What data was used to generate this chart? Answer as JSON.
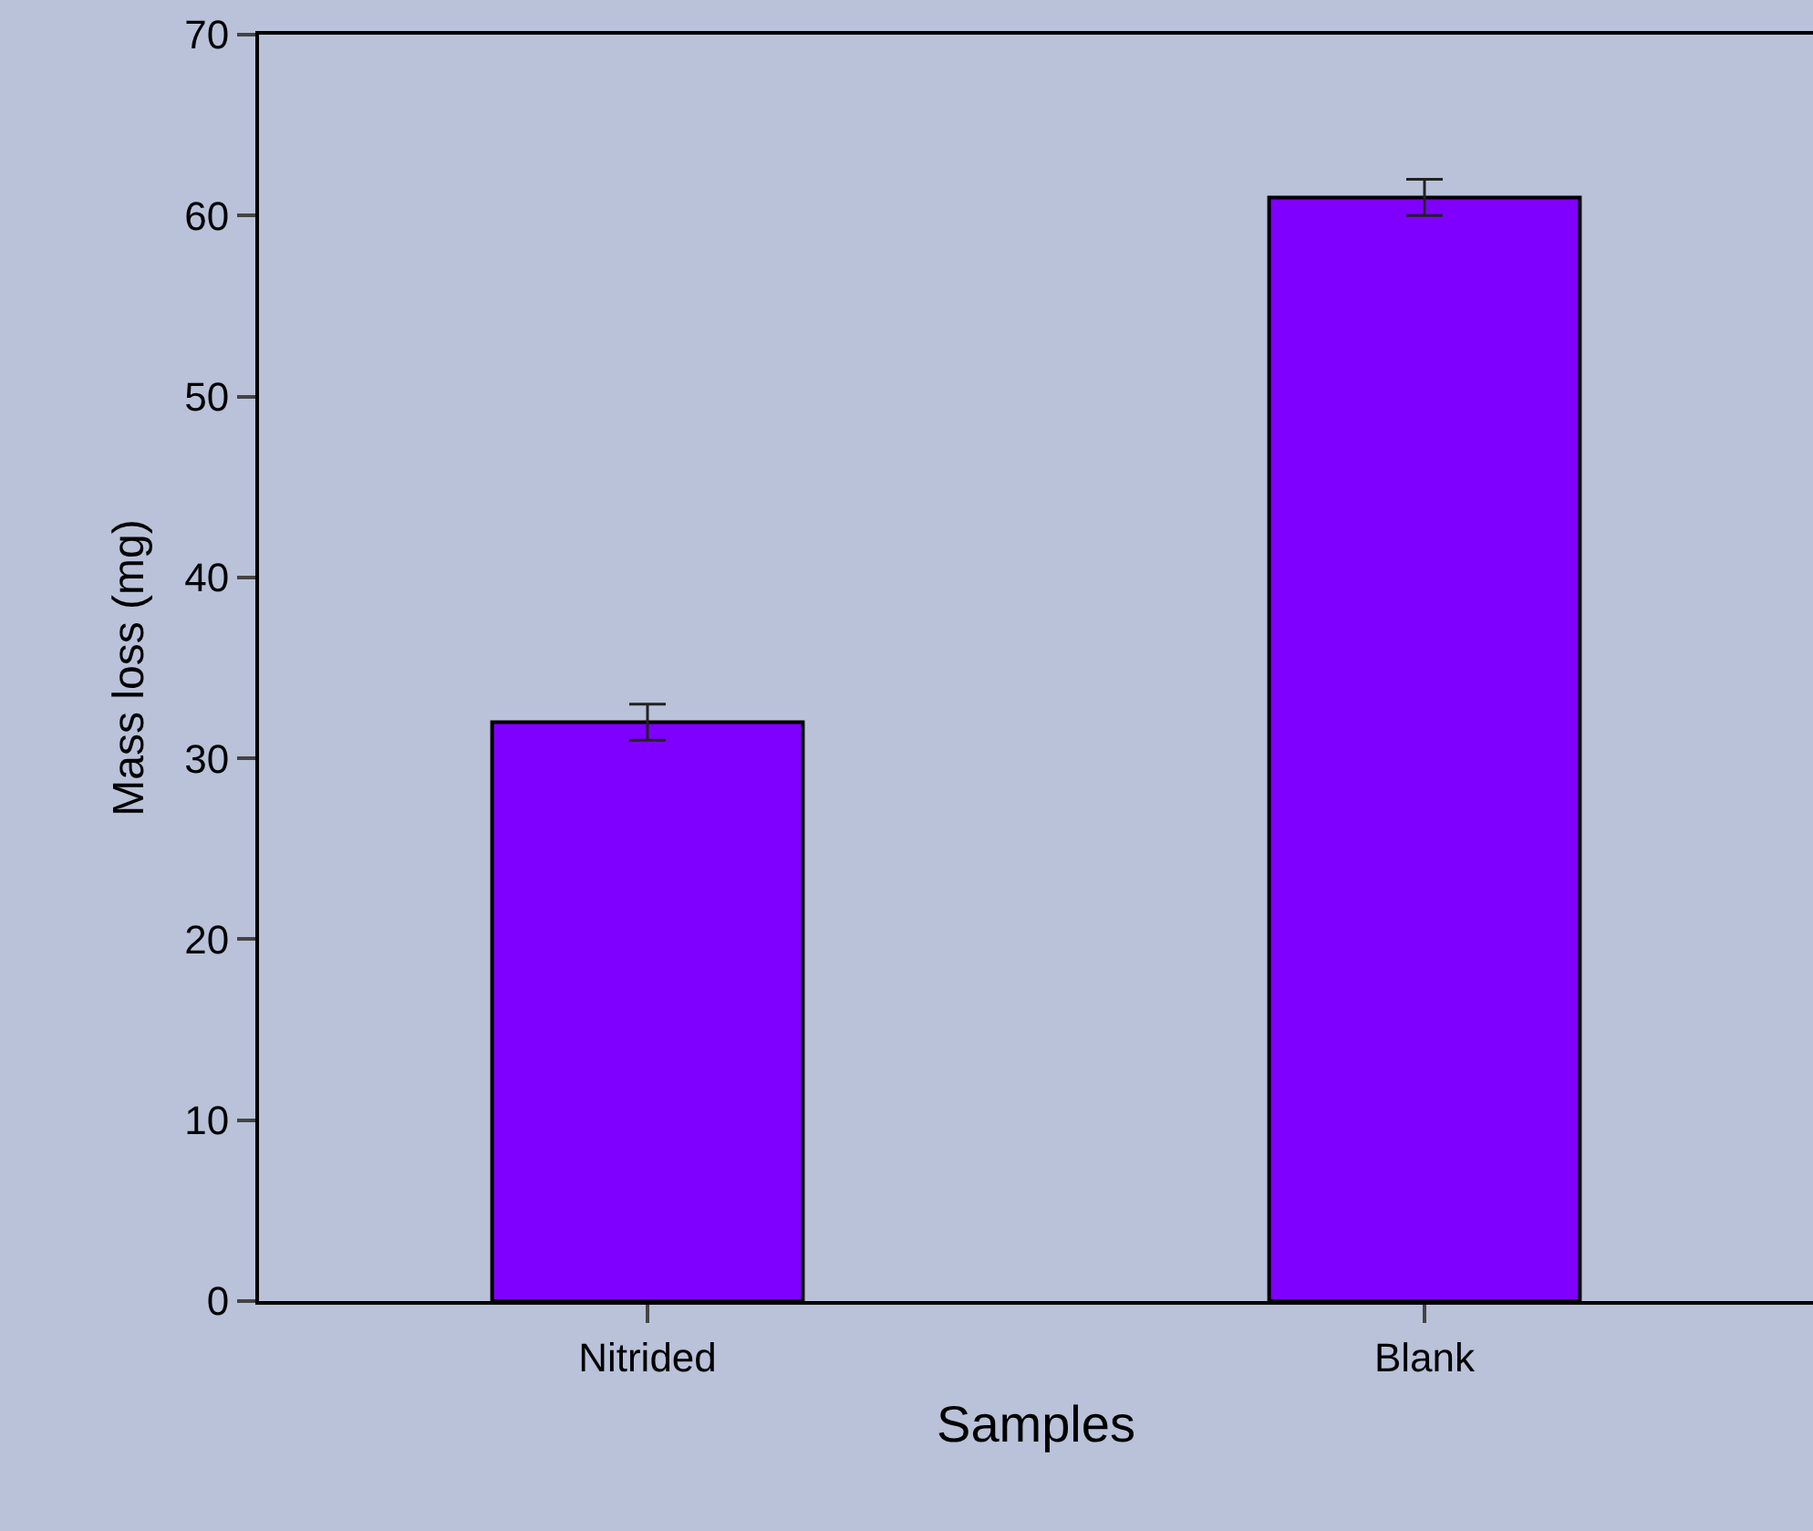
{
  "chart_data": {
    "type": "bar",
    "xlabel": "Samples",
    "ylabel": "Mass loss (mg)",
    "categories": [
      "Nitrided",
      "Blank"
    ],
    "values": [
      32,
      61
    ],
    "errors": [
      1,
      1
    ],
    "color": "#7f00ff",
    "ylim": [
      0,
      70
    ],
    "yticks": [
      0,
      10,
      20,
      30,
      40,
      50,
      60,
      70
    ],
    "grid": false,
    "legend": false
  }
}
